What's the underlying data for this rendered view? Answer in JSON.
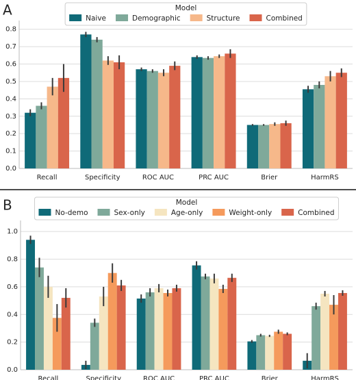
{
  "chart_data": [
    {
      "type": "bar",
      "panel": "A",
      "legend_title": "Model",
      "grid": true,
      "legend_position": "top",
      "categories": [
        "Recall",
        "Specificity",
        "ROC AUC",
        "PRC AUC",
        "Brier",
        "HarmRS"
      ],
      "series": [
        {
          "name": "Naive",
          "color": "#0f6a78",
          "values": [
            0.32,
            0.77,
            0.57,
            0.64,
            0.25,
            0.455
          ],
          "errors": [
            0.02,
            0.015,
            0.01,
            0.01,
            0.005,
            0.02
          ]
        },
        {
          "name": "Demographic",
          "color": "#7fa99a",
          "values": [
            0.36,
            0.74,
            0.56,
            0.635,
            0.25,
            0.48
          ],
          "errors": [
            0.02,
            0.015,
            0.01,
            0.01,
            0.005,
            0.02
          ]
        },
        {
          "name": "Structure",
          "color": "#f6b88a",
          "values": [
            0.47,
            0.62,
            0.55,
            0.645,
            0.255,
            0.53
          ],
          "errors": [
            0.05,
            0.025,
            0.02,
            0.01,
            0.01,
            0.03
          ]
        },
        {
          "name": "Combined",
          "color": "#d9654b",
          "values": [
            0.52,
            0.61,
            0.59,
            0.66,
            0.26,
            0.55
          ],
          "errors": [
            0.08,
            0.04,
            0.025,
            0.025,
            0.015,
            0.025
          ]
        }
      ],
      "ylim": [
        0,
        0.85
      ],
      "yticks": [
        {
          "value": 0,
          "label": "0.0"
        },
        0.1,
        0.2,
        0.3,
        0.4,
        0.5,
        0.6,
        0.7,
        0.8
      ]
    },
    {
      "type": "bar",
      "panel": "B",
      "legend_title": "Model",
      "grid": true,
      "legend_position": "top",
      "categories": [
        "Recall",
        "Specificity",
        "ROC AUC",
        "PRC AUC",
        "Brier",
        "HarmRS"
      ],
      "series": [
        {
          "name": "No-demo",
          "color": "#0f6a78",
          "values": [
            0.94,
            0.035,
            0.515,
            0.755,
            0.205,
            0.065
          ],
          "errors": [
            0.03,
            0.03,
            0.03,
            0.03,
            0.01,
            0.055
          ]
        },
        {
          "name": "Sex-only",
          "color": "#7fa99a",
          "values": [
            0.74,
            0.34,
            0.56,
            0.675,
            0.25,
            0.46
          ],
          "errors": [
            0.07,
            0.03,
            0.03,
            0.02,
            0.01,
            0.025
          ]
        },
        {
          "name": "Age-only",
          "color": "#f5e5c0",
          "values": [
            0.6,
            0.53,
            0.59,
            0.66,
            0.245,
            0.55
          ],
          "errors": [
            0.08,
            0.07,
            0.03,
            0.035,
            0.008,
            0.02
          ]
        },
        {
          "name": "Weight-only",
          "color": "#f59a5c",
          "values": [
            0.375,
            0.7,
            0.555,
            0.585,
            0.275,
            0.47
          ],
          "errors": [
            0.1,
            0.07,
            0.025,
            0.03,
            0.015,
            0.07
          ]
        },
        {
          "name": "Combined",
          "color": "#d9654b",
          "values": [
            0.52,
            0.61,
            0.59,
            0.665,
            0.26,
            0.555
          ],
          "errors": [
            0.07,
            0.04,
            0.025,
            0.03,
            0.01,
            0.02
          ]
        }
      ],
      "ylim": [
        0,
        1.08
      ],
      "yticks": [
        {
          "value": 0,
          "label": "0.0"
        },
        0.2,
        0.4,
        0.6,
        0.8,
        {
          "value": 1,
          "label": "1.0"
        }
      ]
    }
  ]
}
